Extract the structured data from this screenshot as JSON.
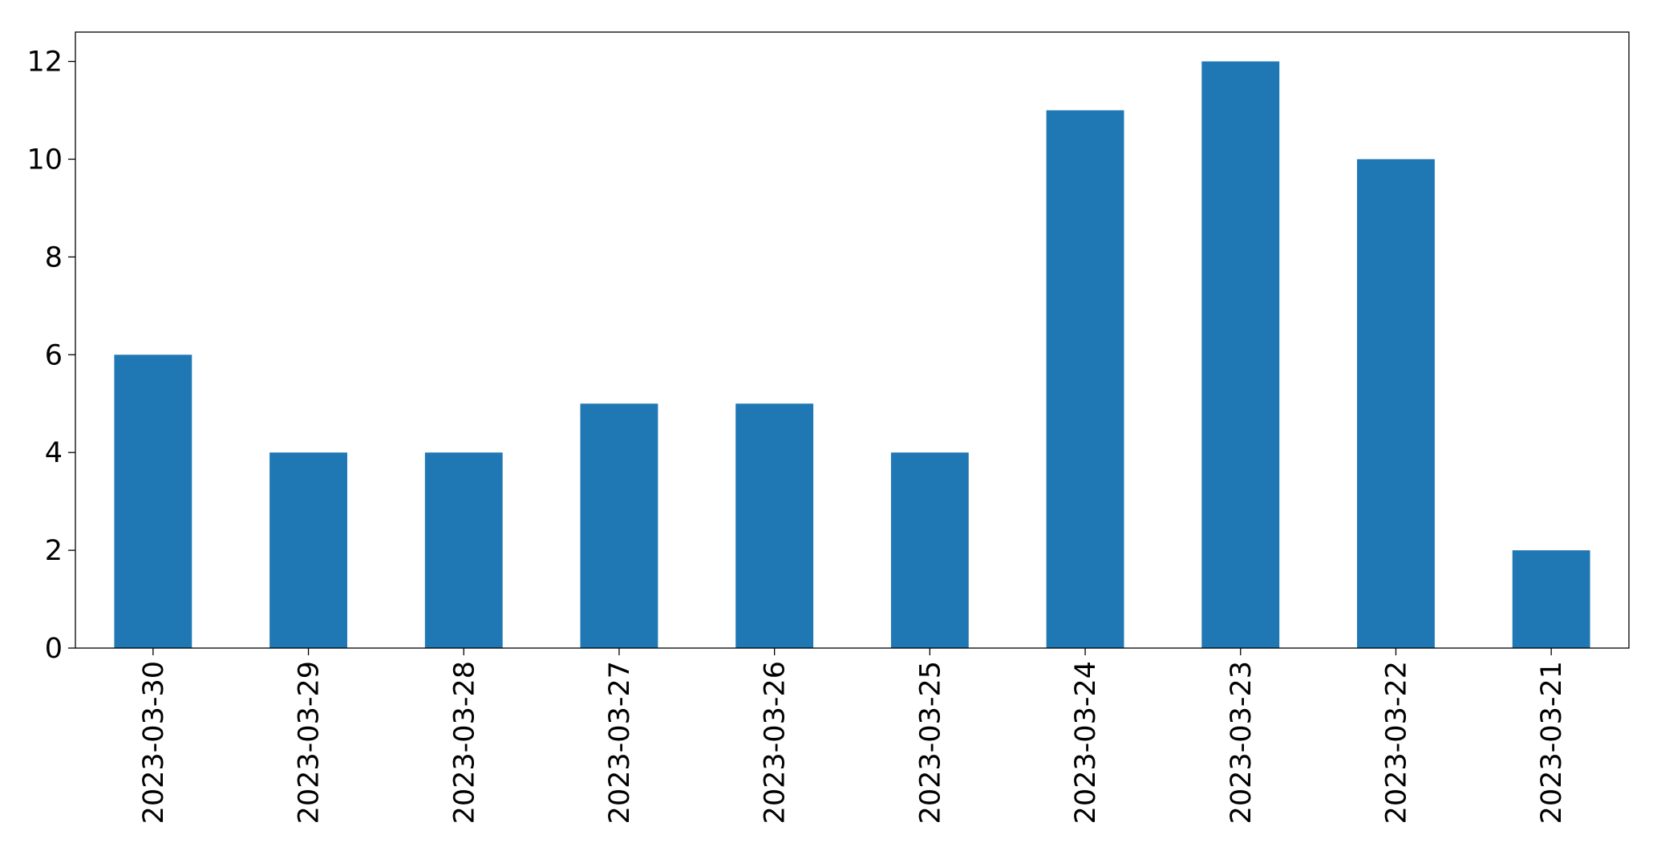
{
  "chart_data": {
    "type": "bar",
    "categories": [
      "2023-03-30",
      "2023-03-29",
      "2023-03-28",
      "2023-03-27",
      "2023-03-26",
      "2023-03-25",
      "2023-03-24",
      "2023-03-23",
      "2023-03-22",
      "2023-03-21"
    ],
    "values": [
      6,
      4,
      4,
      5,
      5,
      4,
      11,
      12,
      10,
      2
    ],
    "color": "#1f77b4",
    "ylim": [
      0,
      12.6
    ],
    "yticks": [
      0,
      2,
      4,
      6,
      8,
      10,
      12
    ],
    "grid": false
  }
}
